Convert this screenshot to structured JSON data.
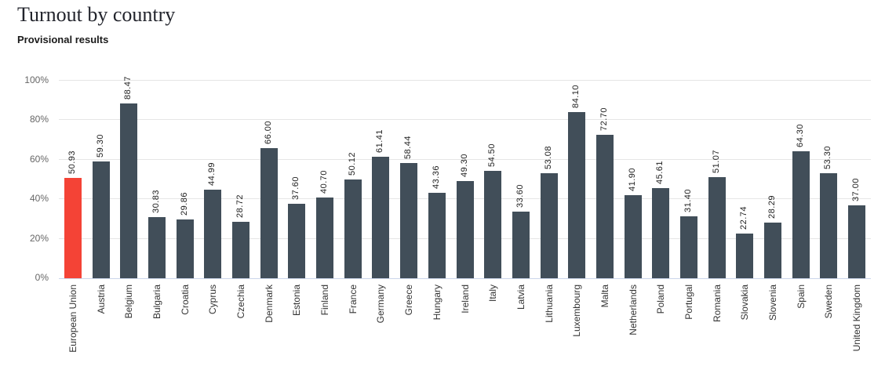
{
  "header": {
    "title": "Turnout by country",
    "subtitle": "Provisional results"
  },
  "chart_data": {
    "type": "bar",
    "title": "Turnout by country",
    "subtitle": "Provisional results",
    "xlabel": "",
    "ylabel": "",
    "ylim": [
      0,
      100
    ],
    "yticks": [
      "0%",
      "20%",
      "40%",
      "60%",
      "80%",
      "100%"
    ],
    "grid": true,
    "legend": false,
    "value_label_format": "2-decimals-rotated-90",
    "category_label_format": "rotated-90",
    "categories": [
      "European Union",
      "Austria",
      "Belgium",
      "Bulgaria",
      "Croatia",
      "Cyprus",
      "Czechia",
      "Denmark",
      "Estonia",
      "Finland",
      "France",
      "Germany",
      "Greece",
      "Hungary",
      "Ireland",
      "Italy",
      "Latvia",
      "Lithuania",
      "Luxembourg",
      "Malta",
      "Netherlands",
      "Poland",
      "Portugal",
      "Romania",
      "Slovakia",
      "Slovenia",
      "Spain",
      "Sweden",
      "United Kingdom"
    ],
    "values": [
      50.93,
      59.3,
      88.47,
      30.83,
      29.86,
      44.99,
      28.72,
      66.0,
      37.6,
      40.7,
      50.12,
      61.41,
      58.44,
      43.36,
      49.3,
      54.5,
      33.6,
      53.08,
      84.1,
      72.7,
      41.9,
      45.61,
      31.4,
      51.07,
      22.74,
      28.29,
      64.3,
      53.3,
      37.0
    ],
    "highlight_category": "European Union",
    "colors": {
      "bar": "#414e59",
      "highlight": "#f44336",
      "grid": "#e6e6e6",
      "axis_line": "#ccd6eb",
      "value_label": "#212121",
      "tick_label": "#666666",
      "category_label": "#333333"
    }
  }
}
